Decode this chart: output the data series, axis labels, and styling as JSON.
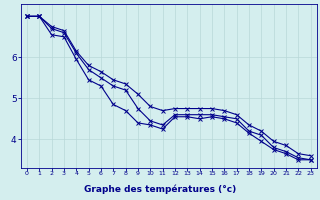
{
  "xlabel": "Graphe des températures (°c)",
  "xlim": [
    -0.5,
    23.5
  ],
  "ylim": [
    3.3,
    7.3
  ],
  "yticks": [
    4,
    5,
    6
  ],
  "xticks": [
    0,
    1,
    2,
    3,
    4,
    5,
    6,
    7,
    8,
    9,
    10,
    11,
    12,
    13,
    14,
    15,
    16,
    17,
    18,
    19,
    20,
    21,
    22,
    23
  ],
  "bg_color": "#d4eeee",
  "grid_color": "#b8d8d8",
  "line_color": "#00008b",
  "line1": [
    7.0,
    7.0,
    6.7,
    6.6,
    6.1,
    5.7,
    5.5,
    5.3,
    5.2,
    4.75,
    4.45,
    4.35,
    4.6,
    4.6,
    4.6,
    4.6,
    4.55,
    4.5,
    4.2,
    4.1,
    3.8,
    3.7,
    3.55,
    3.5
  ],
  "line2": [
    7.0,
    7.0,
    6.75,
    6.65,
    6.15,
    5.8,
    5.65,
    5.45,
    5.35,
    5.1,
    4.8,
    4.7,
    4.75,
    4.75,
    4.75,
    4.75,
    4.7,
    4.6,
    4.35,
    4.2,
    3.95,
    3.85,
    3.65,
    3.6
  ],
  "line3": [
    7.0,
    7.0,
    6.55,
    6.5,
    5.95,
    5.45,
    5.3,
    4.85,
    4.7,
    4.4,
    4.35,
    4.25,
    4.55,
    4.55,
    4.5,
    4.55,
    4.5,
    4.4,
    4.15,
    3.95,
    3.75,
    3.65,
    3.5,
    3.5
  ],
  "xtick_fontsize": 4.5,
  "ytick_fontsize": 6.5,
  "xlabel_fontsize": 6.5,
  "axis_color": "#00008b",
  "xlabel_bg": "#a0b8d0",
  "bottom_bar_color": "#7090b8"
}
